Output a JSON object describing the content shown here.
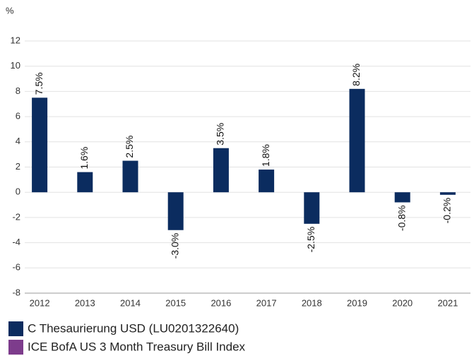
{
  "chart_data": {
    "type": "bar",
    "y_label": "%",
    "categories": [
      "2012",
      "2013",
      "2014",
      "2015",
      "2016",
      "2017",
      "2018",
      "2019",
      "2020",
      "2021"
    ],
    "series": [
      {
        "name": "C Thesaurierung USD (LU0201322640)",
        "color": "#0b2c5f",
        "values": [
          7.5,
          1.6,
          2.5,
          -3.0,
          3.5,
          1.8,
          -2.5,
          8.2,
          -0.8,
          -0.2
        ],
        "value_labels": [
          "7.5%",
          "1.6%",
          "2.5%",
          "-3.0%",
          "3.5%",
          "1.8%",
          "-2.5%",
          "8.2%",
          "-0.8%",
          "-0.2%"
        ]
      },
      {
        "name": "ICE BofA US 3 Month Treasury Bill Index",
        "color": "#7d3c8c",
        "values": [
          null,
          null,
          null,
          null,
          null,
          null,
          null,
          null,
          null,
          null
        ]
      }
    ],
    "ylim": [
      -8,
      12
    ],
    "yticks": [
      -8,
      -6,
      -4,
      -2,
      0,
      2,
      4,
      6,
      8,
      10,
      12
    ],
    "grid": true
  }
}
